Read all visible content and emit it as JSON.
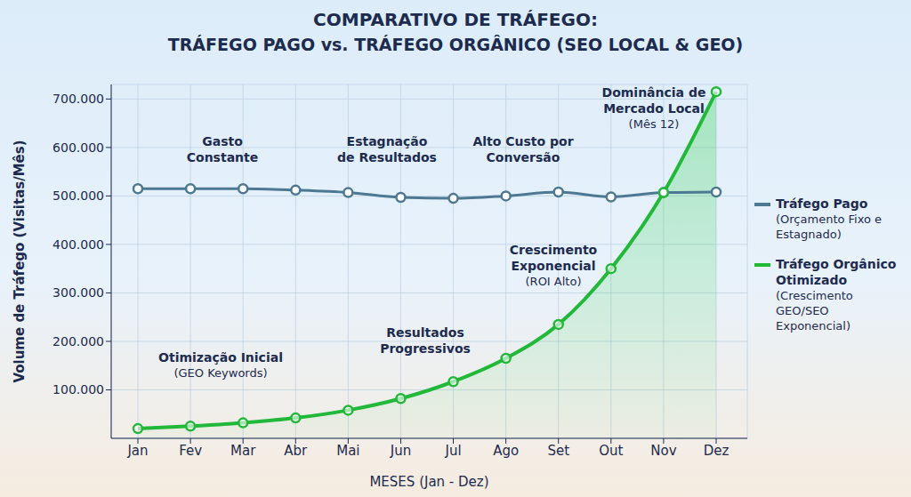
{
  "chart_data": {
    "type": "line",
    "title": "COMPARATIVO DE TRÁFEGO:\nTRÁFEGO PAGO vs. TRÁFEGO ORGÂNICO (SEO LOCAL & GEO)",
    "x_label": "MESES (Jan - Dez)",
    "y_label": "Volume de Tráfego (Visitas/Mês)",
    "categories": [
      "Jan",
      "Fev",
      "Mar",
      "Abr",
      "Mai",
      "Jun",
      "Jul",
      "Ago",
      "Set",
      "Out",
      "Nov",
      "Dez"
    ],
    "series": [
      {
        "name": "Tráfego Pago",
        "description": "(Orçamento Fixo e Estagnado)",
        "type": "line",
        "color": "#4d7891",
        "marker": "o",
        "values": [
          515000,
          515000,
          515000,
          512000,
          507000,
          497000,
          495000,
          500000,
          508000,
          498000,
          507000,
          508000
        ]
      },
      {
        "name": "Tráfego Orgânico Otimizado",
        "description": "(Crescimento GEO/SEO Exponencial)",
        "type": "area",
        "color": "#22b83a",
        "marker": "o",
        "values": [
          20000,
          25000,
          32000,
          42000,
          58000,
          82000,
          117000,
          165000,
          235000,
          350000,
          507000,
          715000
        ]
      }
    ],
    "ylim": [
      0,
      730000
    ],
    "yticks": [
      {
        "value": 100000,
        "label": "100.000"
      },
      {
        "value": 200000,
        "label": "200.000"
      },
      {
        "value": 300000,
        "label": "300.000"
      },
      {
        "value": 400000,
        "label": "400.000"
      },
      {
        "value": 500000,
        "label": "500.000"
      },
      {
        "value": 600000,
        "label": "600.000"
      },
      {
        "value": 700000,
        "label": "700.000"
      }
    ],
    "grid": true,
    "legend": "right",
    "annotations": [
      "Gasto\nConstante",
      "Estagnação\nde Resultados",
      "Alto Custo por\nConversão",
      "Dominância de\nMercado Local\n(Mês 12)",
      "Crescimento\nExponencial\n(ROI Alto)",
      "Resultados\nProgressivos",
      "Otimização Inicial\n(GEO Keywords)"
    ]
  }
}
